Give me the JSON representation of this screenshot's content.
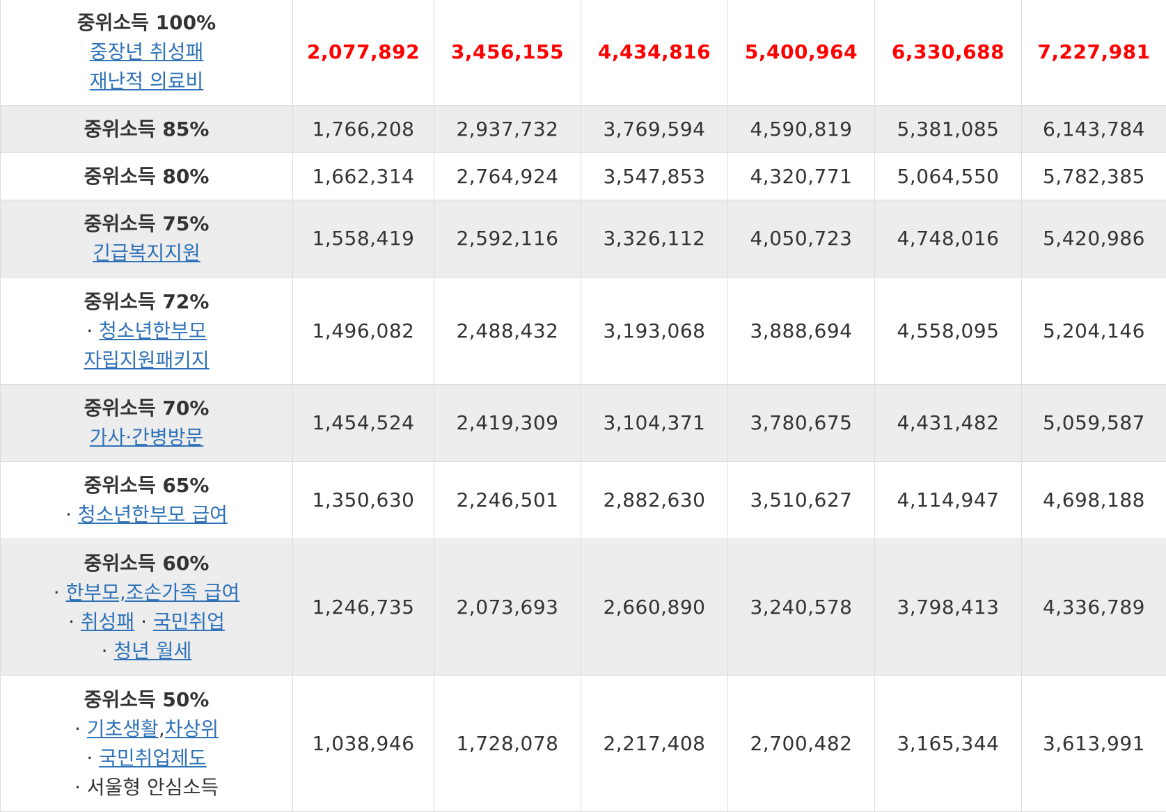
{
  "rows": [
    {
      "tier": "중위소득 100%",
      "shade": false,
      "highlight": true,
      "programs": [
        [
          {
            "t": "중장년 취성패",
            "link": true
          }
        ],
        [
          {
            "t": "재난적 의료비",
            "link": true
          }
        ]
      ],
      "values": [
        "2,077,892",
        "3,456,155",
        "4,434,816",
        "5,400,964",
        "6,330,688",
        "7,227,981"
      ]
    },
    {
      "tier": "중위소득 85%",
      "shade": true,
      "programs": [],
      "values": [
        "1,766,208",
        "2,937,732",
        "3,769,594",
        "4,590,819",
        "5,381,085",
        "6,143,784"
      ]
    },
    {
      "tier": "중위소득 80%",
      "shade": false,
      "programs": [],
      "values": [
        "1,662,314",
        "2,764,924",
        "3,547,853",
        "4,320,771",
        "5,064,550",
        "5,782,385"
      ]
    },
    {
      "tier": "중위소득 75%",
      "shade": true,
      "programs": [
        [
          {
            "t": "긴급복지지원",
            "link": true
          }
        ]
      ],
      "values": [
        "1,558,419",
        "2,592,116",
        "3,326,112",
        "4,050,723",
        "4,748,016",
        "5,420,986"
      ]
    },
    {
      "tier": "중위소득 72%",
      "shade": false,
      "programs": [
        [
          {
            "t": "· ",
            "link": false
          },
          {
            "t": "청소년한부모",
            "link": true
          }
        ],
        [
          {
            "t": "자립지원패키지",
            "link": true
          }
        ]
      ],
      "values": [
        "1,496,082",
        "2,488,432",
        "3,193,068",
        "3,888,694",
        "4,558,095",
        "5,204,146"
      ]
    },
    {
      "tier": "중위소득 70%",
      "shade": true,
      "programs": [
        [
          {
            "t": "가사·간병방문",
            "link": true
          }
        ]
      ],
      "values": [
        "1,454,524",
        "2,419,309",
        "3,104,371",
        "3,780,675",
        "4,431,482",
        "5,059,587"
      ]
    },
    {
      "tier": "중위소득 65%",
      "shade": false,
      "programs": [
        [
          {
            "t": "· ",
            "link": false
          },
          {
            "t": "청소년한부모 급여",
            "link": true
          }
        ]
      ],
      "values": [
        "1,350,630",
        "2,246,501",
        "2,882,630",
        "3,510,627",
        "4,114,947",
        "4,698,188"
      ]
    },
    {
      "tier": "중위소득 60%",
      "shade": true,
      "programs": [
        [
          {
            "t": "· ",
            "link": false
          },
          {
            "t": "한부모,조손가족 급여",
            "link": true
          }
        ],
        [
          {
            "t": "· ",
            "link": false
          },
          {
            "t": "취성패",
            "link": true
          },
          {
            "t": " · ",
            "link": false
          },
          {
            "t": "국민취업",
            "link": true
          }
        ],
        [
          {
            "t": "· ",
            "link": false
          },
          {
            "t": "청년 월세",
            "link": true
          }
        ]
      ],
      "values": [
        "1,246,735",
        "2,073,693",
        "2,660,890",
        "3,240,578",
        "3,798,413",
        "4,336,789"
      ]
    },
    {
      "tier": "중위소득 50%",
      "shade": false,
      "programs": [
        [
          {
            "t": "· ",
            "link": false
          },
          {
            "t": "기초생활",
            "link": true
          },
          {
            "t": ",",
            "link": false
          },
          {
            "t": "차상위",
            "link": true
          }
        ],
        [
          {
            "t": "· ",
            "link": false
          },
          {
            "t": "국민취업제도",
            "link": true
          }
        ],
        [
          {
            "t": "· 서울형 안심소득",
            "link": false
          }
        ]
      ],
      "values": [
        "1,038,946",
        "1,728,078",
        "2,217,408",
        "2,700,482",
        "3,165,344",
        "3,613,991"
      ]
    }
  ],
  "colors": {
    "highlight": "#ff0000",
    "link": "#2f72b8",
    "row_shade": "#ededed",
    "border": "#dcdcdc",
    "text": "#333333"
  }
}
